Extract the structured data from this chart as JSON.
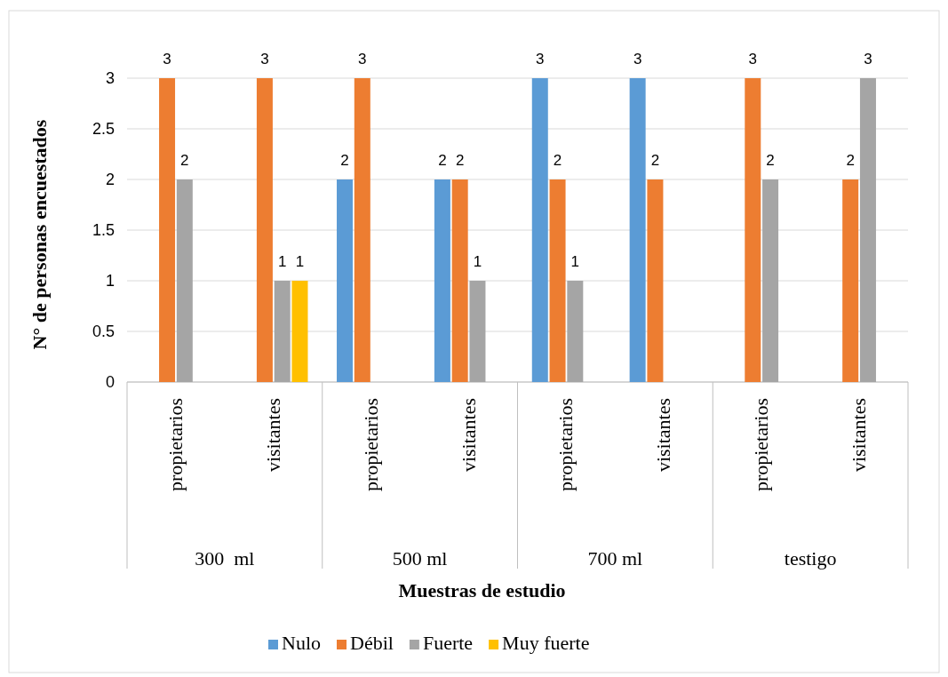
{
  "chart_data": {
    "type": "bar",
    "xlabel": "Muestras de estudio",
    "ylabel": "N° de personas encuestados",
    "categories": [
      "propietarios",
      "visitantes",
      "propietarios",
      "visitantes",
      "propietarios",
      "visitantes",
      "propietarios",
      "visitantes"
    ],
    "annotations": [
      "300  ml",
      "500 ml",
      "700 ml",
      "testigo"
    ],
    "series": [
      {
        "name": "Nulo",
        "color": "#5b9bd5",
        "values": [
          null,
          null,
          2,
          2,
          3,
          3,
          null,
          null
        ]
      },
      {
        "name": "Débil",
        "color": "#ed7d31",
        "values": [
          3,
          3,
          3,
          2,
          2,
          2,
          3,
          2
        ]
      },
      {
        "name": "Fuerte",
        "color": "#a5a5a5",
        "values": [
          2,
          1,
          null,
          1,
          1,
          null,
          2,
          3
        ]
      },
      {
        "name": "Muy fuerte",
        "color": "#ffc000",
        "values": [
          null,
          1,
          null,
          null,
          null,
          null,
          null,
          null
        ]
      }
    ],
    "ylim": [
      0,
      3
    ],
    "yticks": [
      0,
      0.5,
      1,
      1.5,
      2,
      2.5,
      3
    ],
    "grid": "y",
    "legend": "bottom",
    "data_labels": true
  }
}
